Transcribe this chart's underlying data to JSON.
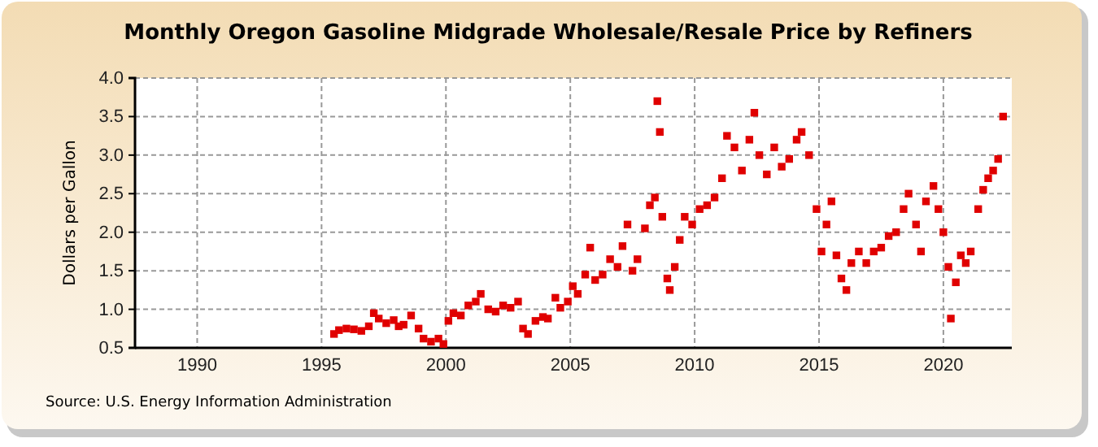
{
  "chart_data": {
    "type": "scatter",
    "title": "Monthly Oregon Gasoline Midgrade Wholesale/Resale Price by Refiners",
    "ylabel": "Dollars per Gallon",
    "annotations": [
      "Source: U.S. Energy Information Administration"
    ],
    "x": [
      1995.5,
      1995.7,
      1996,
      1996.3,
      1996.6,
      1996.9,
      1997.1,
      1997.3,
      1997.6,
      1997.9,
      1998.1,
      1998.3,
      1998.6,
      1998.9,
      1999.1,
      1999.4,
      1999.7,
      1999.9,
      2000.1,
      2000.3,
      2000.6,
      2000.9,
      2001.2,
      2001.4,
      2001.7,
      2002,
      2002.3,
      2002.6,
      2002.9,
      2003.1,
      2003.3,
      2003.6,
      2003.9,
      2004.1,
      2004.4,
      2004.6,
      2004.9,
      2005.1,
      2005.3,
      2005.6,
      2005.8,
      2006,
      2006.3,
      2006.6,
      2006.9,
      2007.1,
      2007.3,
      2007.5,
      2007.7,
      2008,
      2008.2,
      2008.4,
      2008.5,
      2008.6,
      2008.7,
      2008.9,
      2009,
      2009.2,
      2009.4,
      2009.6,
      2009.9,
      2010.2,
      2010.5,
      2010.8,
      2011.1,
      2011.3,
      2011.6,
      2011.9,
      2012.2,
      2012.4,
      2012.6,
      2012.9,
      2013.2,
      2013.5,
      2013.8,
      2014.1,
      2014.3,
      2014.6,
      2014.9,
      2015.1,
      2015.3,
      2015.5,
      2015.7,
      2015.9,
      2016.1,
      2016.3,
      2016.6,
      2016.9,
      2017.2,
      2017.5,
      2017.8,
      2018.1,
      2018.4,
      2018.6,
      2018.9,
      2019.1,
      2019.3,
      2019.6,
      2019.8,
      2020,
      2020.2,
      2020.3,
      2020.5,
      2020.7,
      2020.9,
      2021.1,
      2021.4,
      2021.6,
      2021.8,
      2022,
      2022.2,
      2022.4
    ],
    "series": [
      {
        "color": "#e00000",
        "values": [
          0.68,
          0.73,
          0.75,
          0.74,
          0.72,
          0.78,
          0.95,
          0.88,
          0.82,
          0.86,
          0.78,
          0.8,
          0.92,
          0.75,
          0.62,
          0.58,
          0.62,
          0.55,
          0.85,
          0.95,
          0.92,
          1.05,
          1.1,
          1.2,
          1.0,
          0.97,
          1.05,
          1.02,
          1.1,
          0.75,
          0.68,
          0.85,
          0.9,
          0.88,
          1.15,
          1.02,
          1.1,
          1.3,
          1.2,
          1.45,
          1.8,
          1.38,
          1.45,
          1.65,
          1.55,
          1.82,
          2.1,
          1.5,
          1.65,
          2.05,
          2.35,
          2.45,
          3.7,
          3.3,
          2.2,
          1.4,
          1.25,
          1.55,
          1.9,
          2.2,
          2.1,
          2.3,
          2.35,
          2.45,
          2.7,
          3.25,
          3.1,
          2.8,
          3.2,
          3.55,
          3.0,
          2.75,
          3.1,
          2.85,
          2.95,
          3.2,
          3.3,
          3.0,
          2.3,
          1.75,
          2.1,
          2.4,
          1.7,
          1.4,
          1.25,
          1.6,
          1.75,
          1.6,
          1.75,
          1.8,
          1.95,
          2.0,
          2.3,
          2.5,
          2.1,
          1.75,
          2.4,
          2.6,
          2.3,
          2.0,
          1.55,
          0.88,
          1.35,
          1.7,
          1.6,
          1.75,
          2.3,
          2.55,
          2.7,
          2.8,
          2.95,
          3.5
        ]
      }
    ],
    "xlim": [
      1987.5,
      2022.75
    ],
    "xticks": [
      1990,
      1995,
      2000,
      2005,
      2010,
      2015,
      2020
    ],
    "ylim": [
      0.5,
      4.0
    ],
    "yticks": [
      {
        "value": 0.5,
        "label": "0.5"
      },
      {
        "value": 1,
        "label": "1.0"
      },
      {
        "value": 1.5,
        "label": "1.5"
      },
      {
        "value": 2,
        "label": "2.0"
      },
      {
        "value": 2.5,
        "label": "2.5"
      },
      {
        "value": 3,
        "label": "3.0"
      },
      {
        "value": 3.5,
        "label": "3.5"
      },
      {
        "value": 4,
        "label": "4.0"
      }
    ],
    "grid": true,
    "marker": "square"
  }
}
